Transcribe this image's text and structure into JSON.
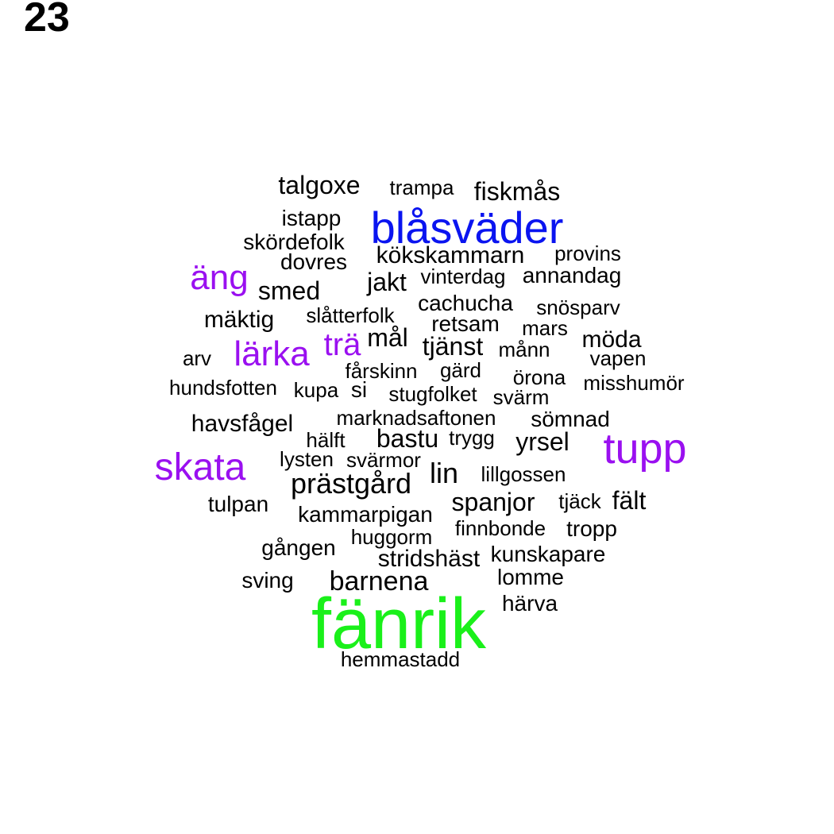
{
  "panel_label": "23",
  "colors": {
    "black": "#000000",
    "blue": "#0a14f0",
    "purple": "#9a10f0",
    "green": "#1af01a"
  },
  "words": [
    {
      "text": "talgoxe",
      "color": "black"
    },
    {
      "text": "trampa",
      "color": "black"
    },
    {
      "text": "fiskmås",
      "color": "black"
    },
    {
      "text": "istapp",
      "color": "black"
    },
    {
      "text": "blåsväder",
      "color": "blue"
    },
    {
      "text": "skördefolk",
      "color": "black"
    },
    {
      "text": "dovres",
      "color": "black"
    },
    {
      "text": "kökskammarn",
      "color": "black"
    },
    {
      "text": "provins",
      "color": "black"
    },
    {
      "text": "äng",
      "color": "purple"
    },
    {
      "text": "smed",
      "color": "black"
    },
    {
      "text": "jakt",
      "color": "black"
    },
    {
      "text": "vinterdag",
      "color": "black"
    },
    {
      "text": "annandag",
      "color": "black"
    },
    {
      "text": "cachucha",
      "color": "black"
    },
    {
      "text": "snösparv",
      "color": "black"
    },
    {
      "text": "mäktig",
      "color": "black"
    },
    {
      "text": "slåtterfolk",
      "color": "black"
    },
    {
      "text": "retsam",
      "color": "black"
    },
    {
      "text": "mars",
      "color": "black"
    },
    {
      "text": "mål",
      "color": "black"
    },
    {
      "text": "möda",
      "color": "black"
    },
    {
      "text": "lärka",
      "color": "purple"
    },
    {
      "text": "trä",
      "color": "purple"
    },
    {
      "text": "tjänst",
      "color": "black"
    },
    {
      "text": "månn",
      "color": "black"
    },
    {
      "text": "arv",
      "color": "black"
    },
    {
      "text": "vapen",
      "color": "black"
    },
    {
      "text": "fårskinn",
      "color": "black"
    },
    {
      "text": "gärd",
      "color": "black"
    },
    {
      "text": "örona",
      "color": "black"
    },
    {
      "text": "hundsfotten",
      "color": "black"
    },
    {
      "text": "kupa",
      "color": "black"
    },
    {
      "text": "si",
      "color": "black"
    },
    {
      "text": "misshumör",
      "color": "black"
    },
    {
      "text": "stugfolket",
      "color": "black"
    },
    {
      "text": "svärm",
      "color": "black"
    },
    {
      "text": "marknadsaftonen",
      "color": "black"
    },
    {
      "text": "sömnad",
      "color": "black"
    },
    {
      "text": "havsfågel",
      "color": "black"
    },
    {
      "text": "hälft",
      "color": "black"
    },
    {
      "text": "bastu",
      "color": "black"
    },
    {
      "text": "trygg",
      "color": "black"
    },
    {
      "text": "yrsel",
      "color": "black"
    },
    {
      "text": "tupp",
      "color": "purple"
    },
    {
      "text": "skata",
      "color": "purple"
    },
    {
      "text": "lysten",
      "color": "black"
    },
    {
      "text": "svärmor",
      "color": "black"
    },
    {
      "text": "lin",
      "color": "black"
    },
    {
      "text": "lillgossen",
      "color": "black"
    },
    {
      "text": "prästgård",
      "color": "black"
    },
    {
      "text": "tulpan",
      "color": "black"
    },
    {
      "text": "spanjor",
      "color": "black"
    },
    {
      "text": "tjäck",
      "color": "black"
    },
    {
      "text": "fält",
      "color": "black"
    },
    {
      "text": "kammarpigan",
      "color": "black"
    },
    {
      "text": "finnbonde",
      "color": "black"
    },
    {
      "text": "tropp",
      "color": "black"
    },
    {
      "text": "huggorm",
      "color": "black"
    },
    {
      "text": "gången",
      "color": "black"
    },
    {
      "text": "stridshäst",
      "color": "black"
    },
    {
      "text": "kunskapare",
      "color": "black"
    },
    {
      "text": "sving",
      "color": "black"
    },
    {
      "text": "barnena",
      "color": "black"
    },
    {
      "text": "lomme",
      "color": "black"
    },
    {
      "text": "härva",
      "color": "black"
    },
    {
      "text": "fänrik",
      "color": "green"
    },
    {
      "text": "hemmastadd",
      "color": "black"
    }
  ]
}
